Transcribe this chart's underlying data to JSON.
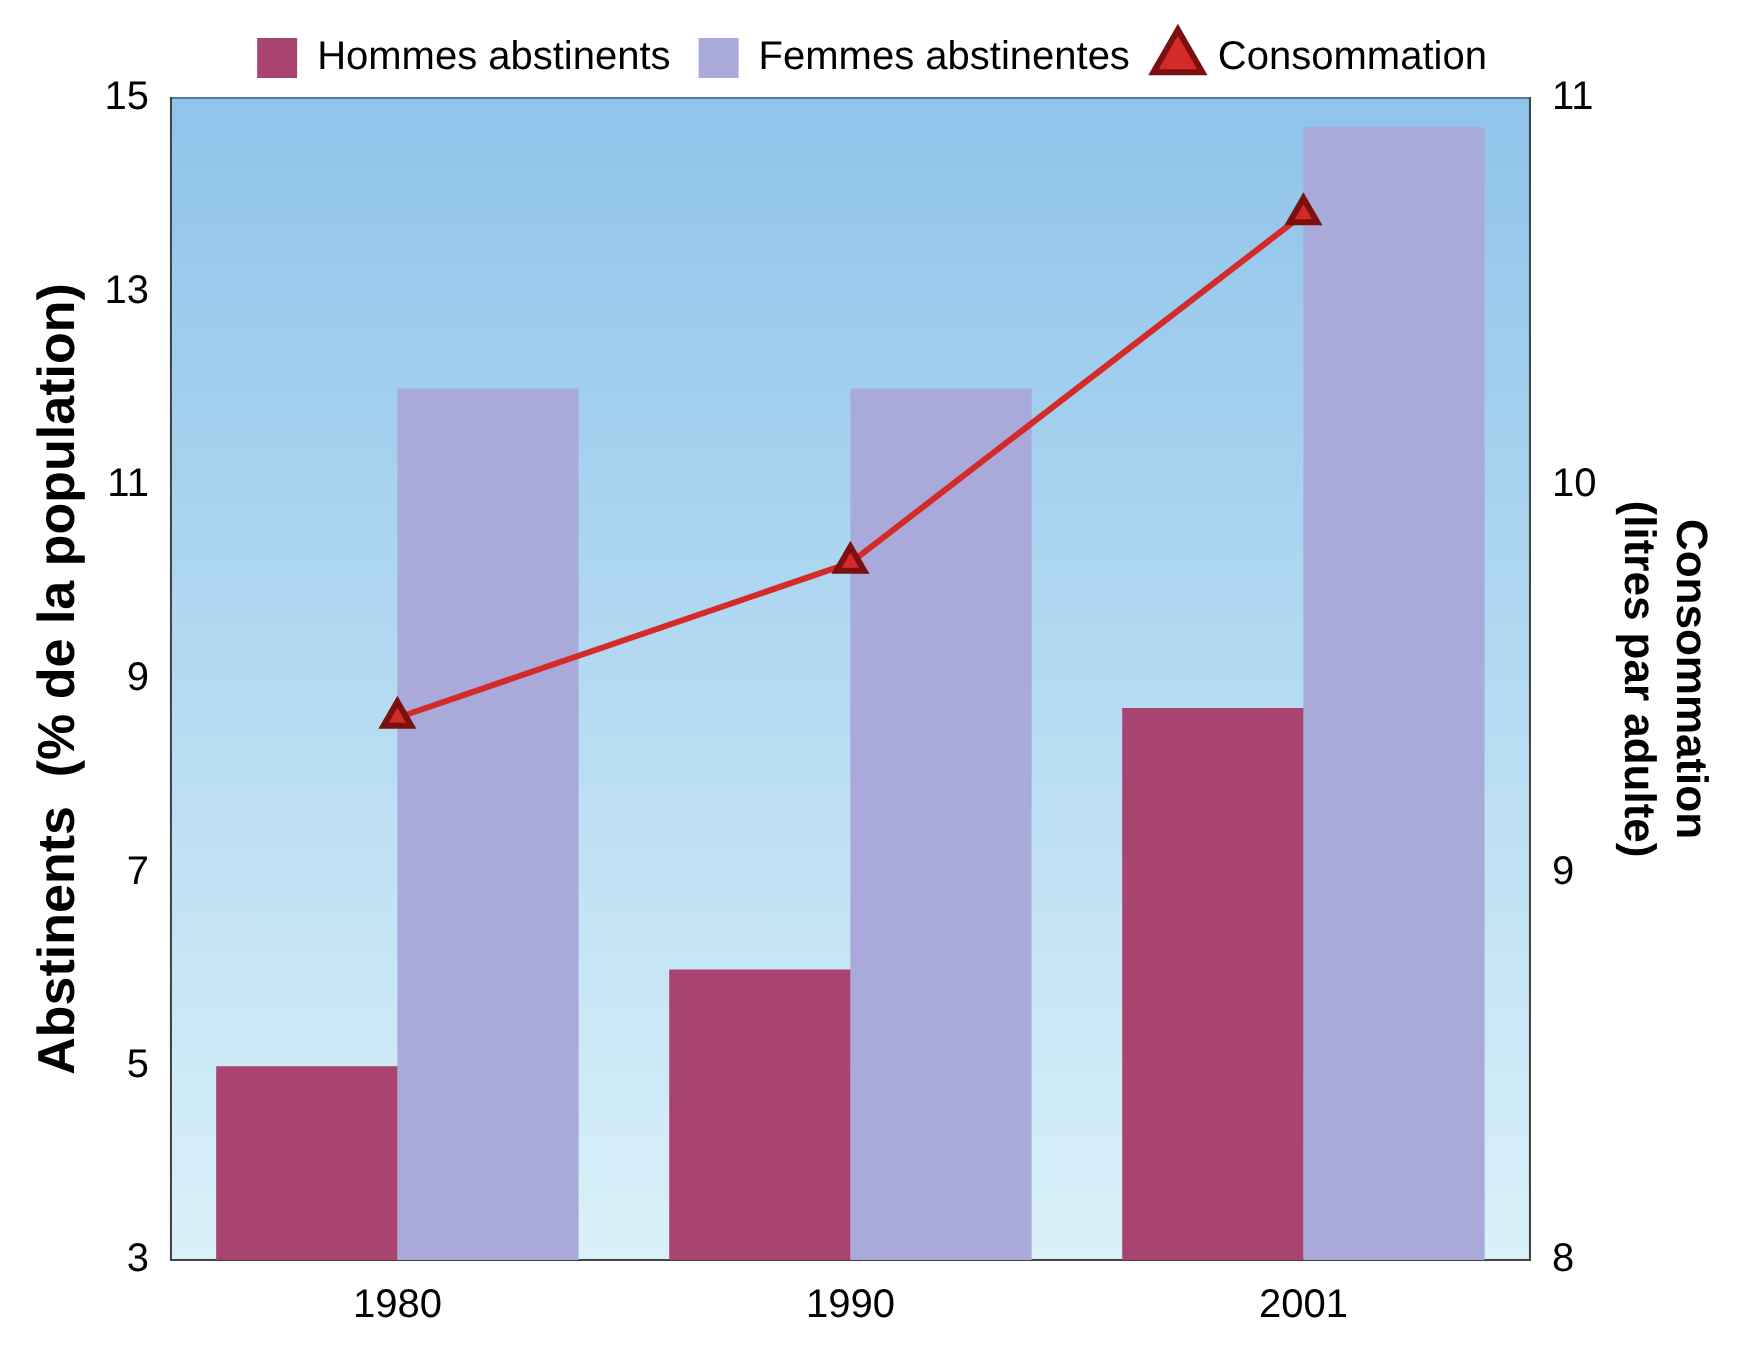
{
  "chart_data": {
    "type": "bar",
    "categories": [
      "1980",
      "1990",
      "2001"
    ],
    "ylabel": "Abstinents  (% de la population)",
    "y2label": "Consommation\n(litres par adulte)",
    "series": [
      {
        "name": "Hommes abstinents",
        "color": "#a8446f",
        "values": [
          5.0,
          6.0,
          8.7
        ]
      },
      {
        "name": "Femmes abstinentes",
        "color": "#a9a9da",
        "values": [
          12.0,
          12.0,
          14.7
        ]
      },
      {
        "name": "Consommation",
        "type": "line",
        "axis": "y2",
        "color": "#d42a2a",
        "values": [
          9.4,
          9.8,
          10.7
        ]
      }
    ],
    "ylim": [
      3,
      15
    ],
    "yticks": [
      3,
      5,
      7,
      9,
      11,
      13,
      15
    ],
    "y2lim": [
      8,
      11
    ],
    "y2ticks": [
      8,
      9,
      10,
      11
    ],
    "grid": false,
    "legend": "top",
    "marker": "triangle",
    "line_style": "solid"
  }
}
